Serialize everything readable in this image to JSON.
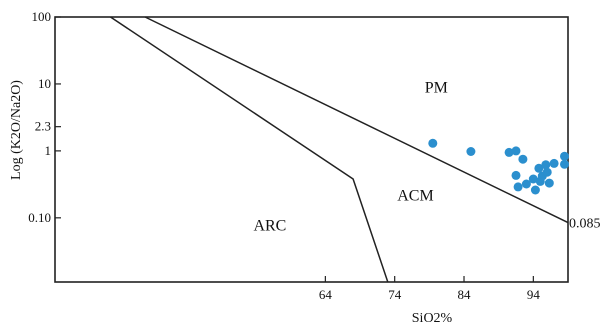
{
  "chart_data": {
    "type": "scatter",
    "xlabel": "SiO2%",
    "ylabel": "Log (K2O/Na2O)",
    "y_scale": "log",
    "xlim": [
      25,
      99
    ],
    "ylim": [
      0.011,
      100
    ],
    "x_ticks": [
      64,
      74,
      84,
      94
    ],
    "y_ticks": [
      {
        "value": 100,
        "label": "100"
      },
      {
        "value": 10,
        "label": "10"
      },
      {
        "value": 2.3,
        "label": "2.3"
      },
      {
        "value": 1,
        "label": "1"
      },
      {
        "value": 0.1,
        "label": "0.10"
      }
    ],
    "grid": false,
    "field_labels": [
      {
        "text": "PM",
        "x": 80,
        "y": 7.5
      },
      {
        "text": "ACM",
        "x": 77,
        "y": 0.18
      },
      {
        "text": "ARC",
        "x": 56,
        "y": 0.065
      }
    ],
    "boundaries": [
      {
        "name": "ARC-ACM",
        "points": [
          [
            33,
            100
          ],
          [
            68,
            0.38
          ],
          [
            73,
            0.011
          ]
        ]
      },
      {
        "name": "ACM-PM",
        "points": [
          [
            38,
            100
          ],
          [
            99,
            0.085
          ]
        ]
      }
    ],
    "annotations": [
      {
        "text": "0.085",
        "x": 99,
        "y": 0.085
      }
    ],
    "point_color": "#2b8fce",
    "series": [
      {
        "points": [
          [
            79.5,
            1.3
          ],
          [
            85,
            0.98
          ],
          [
            90.5,
            0.95
          ],
          [
            91.5,
            1.0
          ],
          [
            92.5,
            0.75
          ],
          [
            91.5,
            0.43
          ],
          [
            91.8,
            0.29
          ],
          [
            93,
            0.32
          ],
          [
            94,
            0.38
          ],
          [
            94.3,
            0.26
          ],
          [
            94.8,
            0.55
          ],
          [
            95,
            0.35
          ],
          [
            95.3,
            0.42
          ],
          [
            95.8,
            0.62
          ],
          [
            96,
            0.48
          ],
          [
            96.3,
            0.33
          ],
          [
            97,
            0.65
          ],
          [
            98.5,
            0.83
          ],
          [
            98.5,
            0.63
          ]
        ]
      }
    ]
  }
}
